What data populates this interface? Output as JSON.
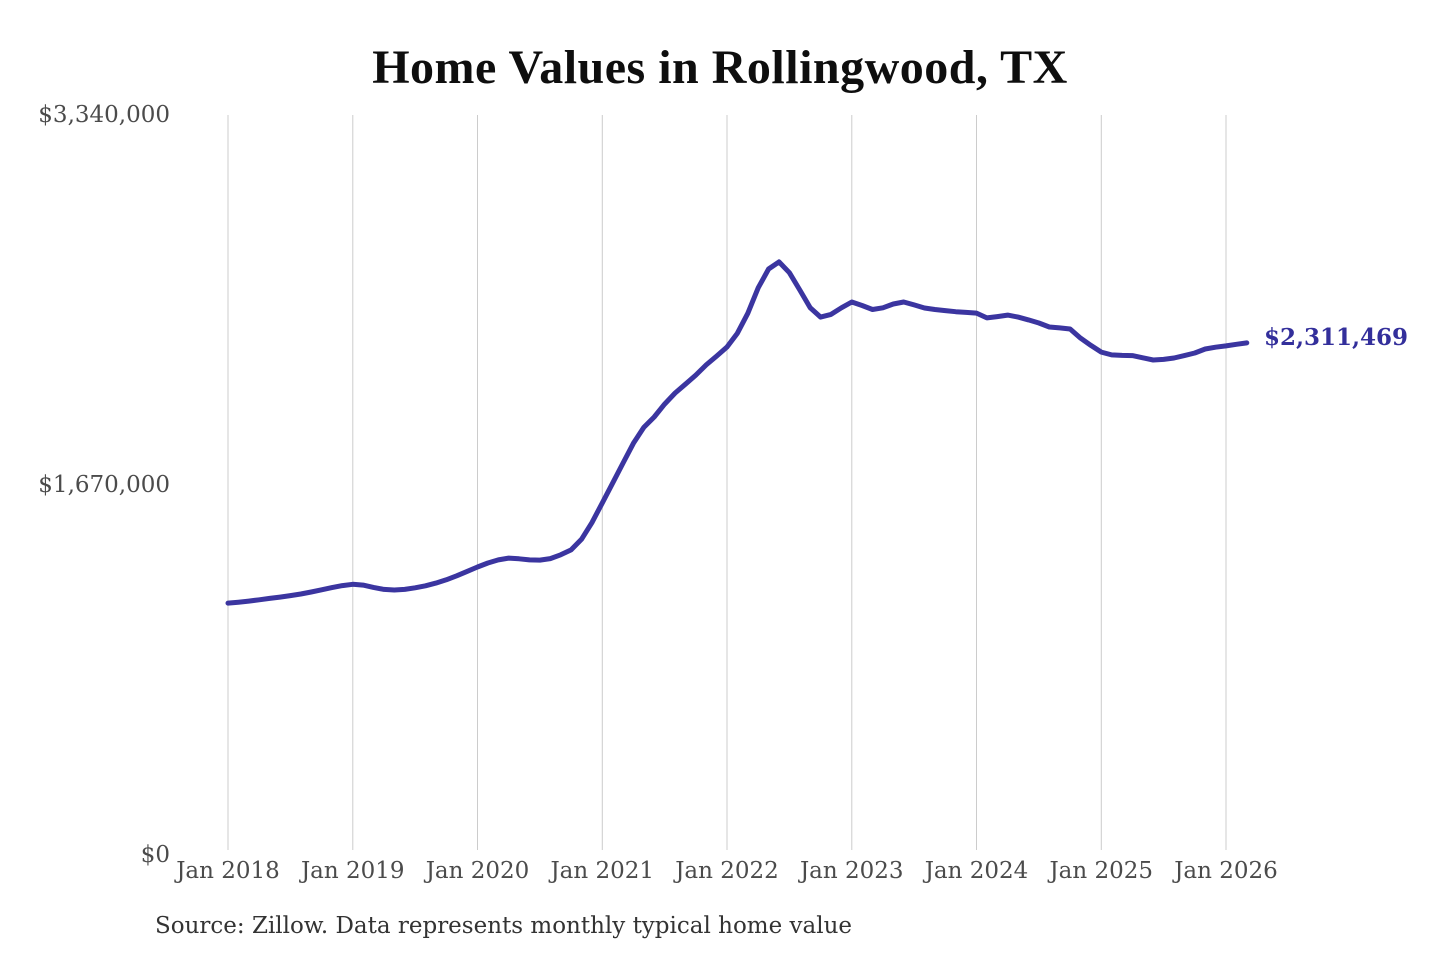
{
  "chart_data": {
    "type": "line",
    "title": "Home Values in Rollingwood, TX",
    "source_note": "Source: Zillow. Data represents monthly typical home value",
    "series_name": "Typical home value (monthly)",
    "x_start": "2018-01",
    "frequency": "monthly",
    "x_tick_labels": [
      "Jan 2018",
      "Jan 2019",
      "Jan 2020",
      "Jan 2021",
      "Jan 2022",
      "Jan 2023",
      "Jan 2024",
      "Jan 2025",
      "Jan 2026"
    ],
    "x_tick_month_indices": [
      0,
      12,
      24,
      36,
      48,
      60,
      72,
      84,
      96
    ],
    "y_tick_labels": [
      "$3,340,000",
      "$1,670,000",
      "$0"
    ],
    "y_tick_values": [
      3340000,
      1670000,
      0
    ],
    "ylim": [
      0,
      3340000
    ],
    "grid": "vertical-only",
    "legend": "none",
    "line_color": "#3b35a0",
    "grid_color": "#cccccc",
    "tick_label_color": "#4b4b4b",
    "end_label": "$2,311,469",
    "end_value": 2311469,
    "values": [
      1137000,
      1141000,
      1146000,
      1152000,
      1158000,
      1164000,
      1171000,
      1178000,
      1187000,
      1197000,
      1207000,
      1216000,
      1222000,
      1218000,
      1208000,
      1199000,
      1196000,
      1199000,
      1206000,
      1215000,
      1227000,
      1242000,
      1260000,
      1280000,
      1300000,
      1318000,
      1332000,
      1340000,
      1337000,
      1332000,
      1331000,
      1338000,
      1355000,
      1377000,
      1425000,
      1500000,
      1589000,
      1678000,
      1769000,
      1858000,
      1930000,
      1977000,
      2035000,
      2085000,
      2125000,
      2166000,
      2212000,
      2252000,
      2293000,
      2355000,
      2445000,
      2560000,
      2645000,
      2677000,
      2628000,
      2550000,
      2470000,
      2428000,
      2440000,
      2470000,
      2496000,
      2480000,
      2462000,
      2470000,
      2487000,
      2496000,
      2483000,
      2469000,
      2462000,
      2457000,
      2452000,
      2449000,
      2446000,
      2424000,
      2430000,
      2437000,
      2428000,
      2415000,
      2401000,
      2383000,
      2379000,
      2374000,
      2333000,
      2300000,
      2270000,
      2257000,
      2255000,
      2254000,
      2244000,
      2234000,
      2237000,
      2243000,
      2254000,
      2266000,
      2284000,
      2292000,
      2298000,
      2305000,
      2311469
    ]
  }
}
